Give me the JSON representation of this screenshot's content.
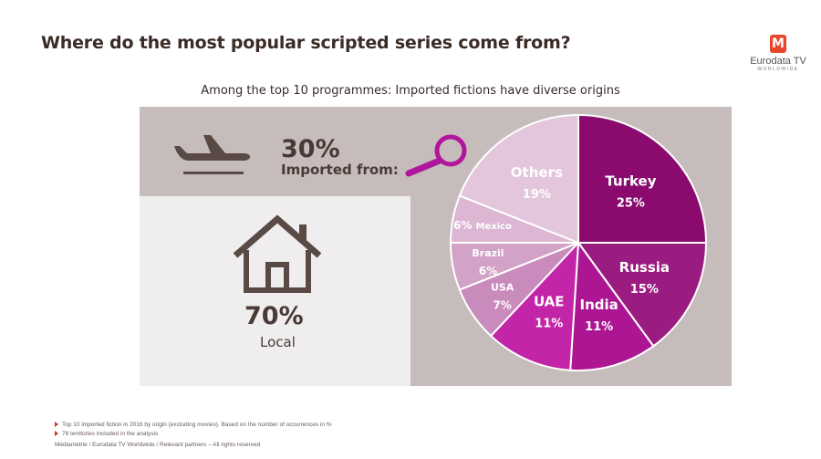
{
  "header": {
    "title": "Where do the most popular scripted series come from?",
    "subtitle": "Among the top 10 programmes: Imported fictions have diverse origins"
  },
  "logo": {
    "mark": "M",
    "name": "Eurodata TV",
    "sub": "WORLDWIDE",
    "color": "#e8462a"
  },
  "summary": {
    "imported_pct": "30%",
    "imported_label": "Imported from:",
    "local_pct": "70%",
    "local_label": "Local"
  },
  "icons": {
    "imported": "airplane-icon",
    "search": "magnifier-icon",
    "local": "house-icon"
  },
  "chart_data": {
    "type": "pie",
    "slices": [
      {
        "name": "Turkey",
        "label": "25%",
        "value": 25,
        "color": "#8a0a6e"
      },
      {
        "name": "Russia",
        "label": "15%",
        "value": 15,
        "color": "#9b1c80"
      },
      {
        "name": "India",
        "label": "11%",
        "value": 11,
        "color": "#ad1693"
      },
      {
        "name": "UAE",
        "label": "11%",
        "value": 11,
        "color": "#c225a8"
      },
      {
        "name": "USA",
        "label": "7%",
        "value": 7,
        "color": "#c98bbc"
      },
      {
        "name": "Brazil",
        "label": "6%",
        "value": 6,
        "color": "#d2a2c7"
      },
      {
        "name": "Mexico",
        "label": "6%",
        "value": 6,
        "color": "#dcb6d2"
      },
      {
        "name": "Others",
        "label": "19%",
        "value": 19,
        "color": "#e3c5dc"
      }
    ]
  },
  "footnotes": [
    "Top 10 imported fiction in 2016 by origin (excluding movies). Based on the number of occurrences in %",
    "78 territories included in the analysis"
  ],
  "copyright": "Médiamétrie / Eurodata TV Worldwide / Relevant partners – All rights reserved"
}
